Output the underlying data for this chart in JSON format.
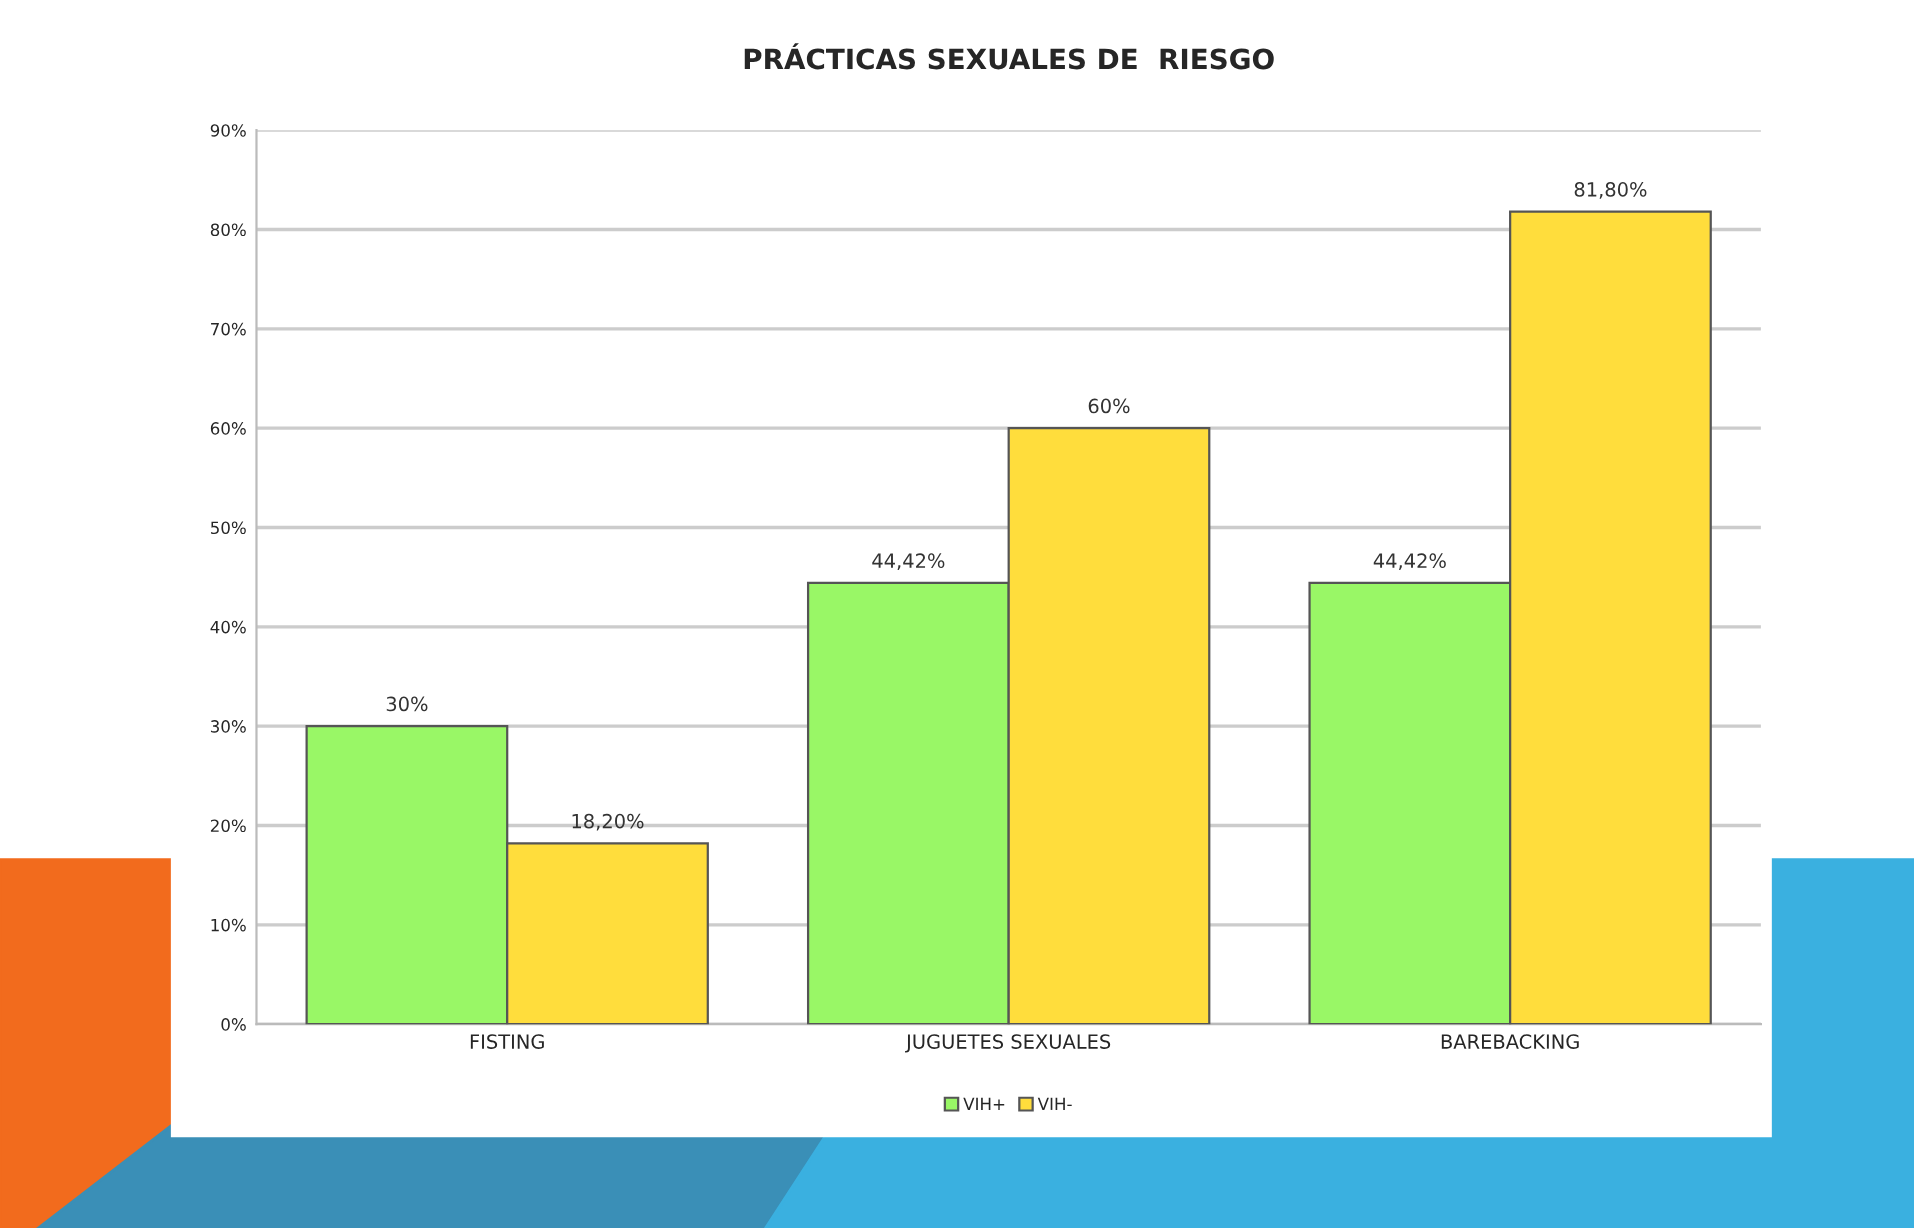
{
  "chart_data": {
    "type": "bar",
    "title": "PRÁCTICAS SEXUALES DE  RIESGO",
    "categories": [
      "FISTING",
      "JUGUETES SEXUALES",
      "BAREBACKING"
    ],
    "series": [
      {
        "name": "VIH+",
        "color": "#99f766",
        "values": [
          30,
          44.42,
          44.42
        ],
        "value_labels": [
          "30%",
          "44,42%",
          "44,42%"
        ]
      },
      {
        "name": "VIH-",
        "color": "#ffdd3c",
        "values": [
          18.2,
          60,
          81.8
        ],
        "value_labels": [
          "18,20%",
          "60%",
          "81,80%"
        ]
      }
    ],
    "ylim": [
      0,
      90
    ],
    "yticks": [
      {
        "value": 0,
        "label": "0%"
      },
      {
        "value": 10,
        "label": "10%"
      },
      {
        "value": 20,
        "label": "20%"
      },
      {
        "value": 30,
        "label": "30%"
      },
      {
        "value": 40,
        "label": "40%"
      },
      {
        "value": 50,
        "label": "50%"
      },
      {
        "value": 60,
        "label": "60%"
      },
      {
        "value": 70,
        "label": "70%"
      },
      {
        "value": 80,
        "label": "80%"
      },
      {
        "value": 90,
        "label": "90%"
      }
    ],
    "grid": "y",
    "legend": "bottom"
  }
}
